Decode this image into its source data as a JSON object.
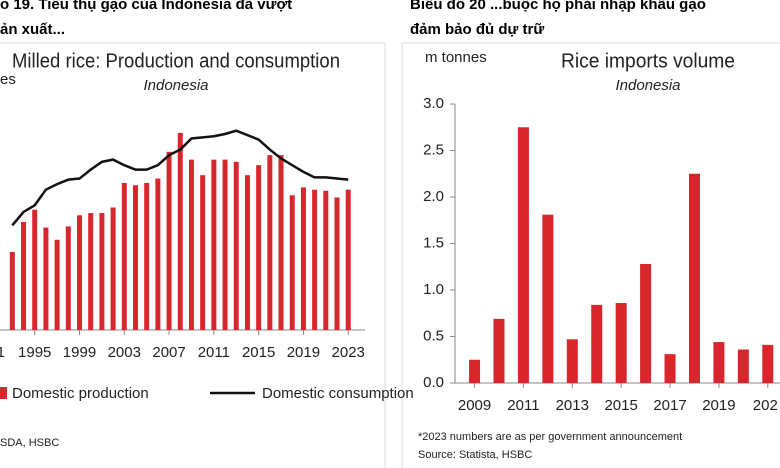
{
  "chart_data": [
    {
      "type": "bar_line",
      "caption": [
        "o 19. Tiêu thụ gạo của Indonesia đã vượt",
        "ản xuất..."
      ],
      "title": "Milled rice: Production and consumption",
      "subtitle": "Indonesia",
      "y_label": "es",
      "x": [
        1993,
        1994,
        1995,
        1996,
        1997,
        1998,
        1999,
        2000,
        2001,
        2002,
        2003,
        2004,
        2005,
        2006,
        2007,
        2008,
        2009,
        2010,
        2011,
        2012,
        2013,
        2014,
        2015,
        2016,
        2017,
        2018,
        2019,
        2020,
        2021,
        2022,
        2023
      ],
      "series": [
        {
          "name": "Domestic production",
          "color": "#d9262c",
          "kind": "bar",
          "values": [
            27.0,
            29.7,
            30.8,
            29.2,
            28.1,
            29.3,
            30.3,
            30.5,
            30.5,
            31.0,
            33.2,
            33.0,
            33.2,
            33.6,
            36.0,
            37.7,
            35.3,
            33.9,
            35.3,
            35.3,
            35.1,
            33.9,
            34.8,
            35.7,
            35.7,
            32.1,
            32.8,
            32.6,
            32.5,
            31.9,
            32.6
          ]
        },
        {
          "name": "Domestic consumption",
          "color": "#111111",
          "kind": "line",
          "values": [
            29.4,
            30.6,
            31.2,
            32.6,
            33.1,
            33.5,
            33.6,
            34.4,
            35.1,
            35.3,
            34.8,
            34.4,
            34.4,
            34.8,
            35.7,
            36.2,
            37.2,
            37.3,
            37.4,
            37.6,
            37.9,
            37.5,
            37.1,
            36.2,
            35.4,
            34.8,
            34.2,
            33.7,
            33.7,
            33.6,
            33.5
          ]
        }
      ],
      "xlim": [
        1991.9,
        2024.5
      ],
      "ylim": [
        20,
        42
      ],
      "xticks": [
        {
          "value": 1991,
          "label": "1"
        },
        1995,
        1999,
        2003,
        2007,
        2011,
        2015,
        2019,
        2023
      ],
      "source": "SDA, HSBC"
    },
    {
      "type": "bar",
      "caption": [
        "Biểu đồ 20 ...buộc họ phải nhập khẩu gạo",
        "đảm bảo đủ dự trữ"
      ],
      "title": "Rice imports volume",
      "subtitle": "Indonesia",
      "y_label": "m tonnes",
      "x": [
        2009,
        2010,
        2011,
        2012,
        2013,
        2014,
        2015,
        2016,
        2017,
        2018,
        2019,
        2020,
        2021
      ],
      "values": [
        0.25,
        0.69,
        2.75,
        1.81,
        0.47,
        0.84,
        0.86,
        1.28,
        0.31,
        2.25,
        0.44,
        0.36,
        0.41
      ],
      "color": "#d9262c",
      "xlim": [
        2008.2,
        2021.5
      ],
      "ylim": [
        0,
        3
      ],
      "yticks": [
        {
          "value": 0,
          "label": "0.0"
        },
        {
          "value": 0.5,
          "label": "0.5"
        },
        {
          "value": 1,
          "label": "1.0"
        },
        {
          "value": 1.5,
          "label": "1.5"
        },
        {
          "value": 2,
          "label": "2.0"
        },
        {
          "value": 2.5,
          "label": "2.5"
        },
        {
          "value": 3,
          "label": "3.0"
        }
      ],
      "xticks": [
        2009,
        2011,
        2013,
        2015,
        2017,
        2019,
        {
          "value": 2021,
          "label": "202"
        }
      ],
      "note": "*2023 numbers are as per government announcement",
      "source": "Source: Statista, HSBC"
    }
  ]
}
